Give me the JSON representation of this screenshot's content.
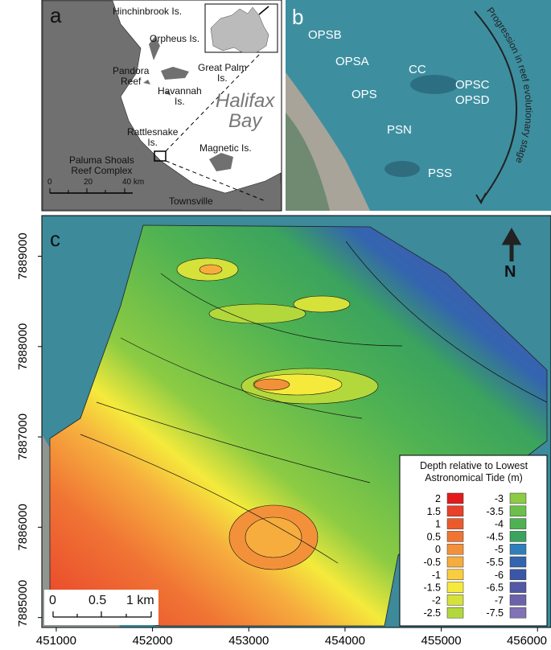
{
  "panel_a": {
    "label": "a",
    "places": {
      "hinchinbrook": "Hinchinbrook Is.",
      "orpheus": "Orpheus Is.",
      "pandora": "Pandora\nReef",
      "great_palm": "Great Palm\nIs.",
      "havannah": "Havannah\nIs.",
      "halifax": "Halifax\nBay",
      "rattlesnake": "Rattlesnake\nIs.",
      "magnetic": "Magnetic Is.",
      "paluma": "Paluma Shoals\nReef Complex",
      "townsville": "Townsville"
    },
    "scale": [
      "0",
      "20",
      "40 km"
    ]
  },
  "panel_b": {
    "label": "b",
    "reefs": [
      "OPSB",
      "OPSA",
      "CC",
      "OPS",
      "OPSC",
      "OPSD",
      "PSN",
      "PSS"
    ],
    "arrow_text": "Progression in reef evolutionary stage"
  },
  "panel_c": {
    "label": "c",
    "north": "N",
    "xlim": [
      450850,
      456140
    ],
    "ylim": [
      7884890,
      7889450
    ],
    "xticks": [
      451000,
      452000,
      453000,
      454000,
      455000,
      456000
    ],
    "yticks": [
      7885000,
      7886000,
      7887000,
      7888000,
      7889000
    ],
    "scale": [
      "0",
      "0.5",
      "1 km"
    ],
    "legend": {
      "title": "Depth relative to Lowest\nAstronomical Tide (m)",
      "items": [
        {
          "value": 2,
          "color": "#e41a1c"
        },
        {
          "value": 1.5,
          "color": "#e8402a"
        },
        {
          "value": 1,
          "color": "#ec5a2c"
        },
        {
          "value": 0.5,
          "color": "#f07434"
        },
        {
          "value": 0,
          "color": "#f3913a"
        },
        {
          "value": -0.5,
          "color": "#f6ad3e"
        },
        {
          "value": -1,
          "color": "#f9cd3f"
        },
        {
          "value": -1.5,
          "color": "#f5ea3c"
        },
        {
          "value": -2,
          "color": "#d6e23a"
        },
        {
          "value": -2.5,
          "color": "#b3d83c"
        },
        {
          "value": -3,
          "color": "#8ccb43"
        },
        {
          "value": -3.5,
          "color": "#6cc04a"
        },
        {
          "value": -4,
          "color": "#4fb252"
        },
        {
          "value": -4.5,
          "color": "#3aa35e"
        },
        {
          "value": -5,
          "color": "#2f7fba"
        },
        {
          "value": -5.5,
          "color": "#3464b0"
        },
        {
          "value": -6,
          "color": "#3a56a6"
        },
        {
          "value": -6.5,
          "color": "#5358a4"
        },
        {
          "value": -7,
          "color": "#6c62ab"
        },
        {
          "value": -7.5,
          "color": "#8271b5"
        }
      ]
    }
  }
}
